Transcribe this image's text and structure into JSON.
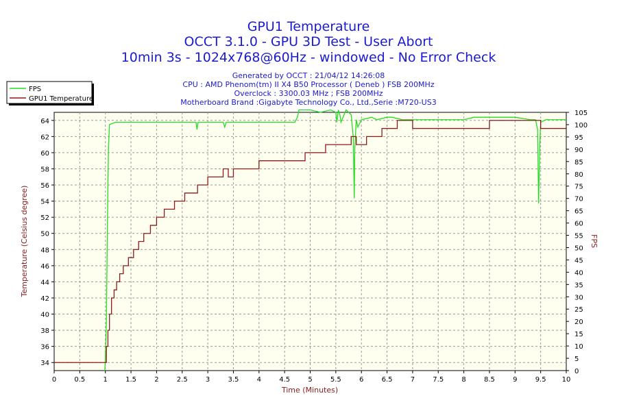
{
  "chart_data": {
    "type": "line",
    "title": "GPU1 Temperature",
    "subtitle_lines": [
      "OCCT 3.1.0 - GPU 3D Test - User Abort",
      "10min 3s - 1024x768@60Hz - windowed - No Error Check"
    ],
    "info_lines": [
      "Generated by OCCT : 21/04/12 14:26:08",
      "CPU : AMD Phenom(tm) II X4 B50 Processor ( Deneb ) FSB 200MHz",
      "Overclock : 3300.03 MHz ; FSB 200MHz",
      "Motherboard Brand :Gigabyte Technology Co., Ltd.,Serie :M720-US3"
    ],
    "xlabel": "Time (Minutes)",
    "ylabel": "Temperature (Celsius degree)",
    "y2label": "FPS",
    "xlim": [
      0,
      10
    ],
    "ylim": [
      33,
      65
    ],
    "y2lim": [
      0,
      105
    ],
    "grid": true,
    "legend_position": "top-left",
    "x_ticks": [
      "0",
      "0.5",
      "1",
      "1.5",
      "2",
      "2.5",
      "3",
      "3.5",
      "4",
      "4.5",
      "5",
      "5.5",
      "6",
      "6.5",
      "7",
      "7.5",
      "8",
      "8.5",
      "9",
      "9.5",
      "10"
    ],
    "y_ticks": [
      "34",
      "36",
      "38",
      "40",
      "42",
      "44",
      "46",
      "48",
      "50",
      "52",
      "54",
      "56",
      "58",
      "60",
      "62",
      "64"
    ],
    "y2_ticks": [
      "0",
      "5",
      "10",
      "15",
      "20",
      "25",
      "30",
      "35",
      "40",
      "45",
      "50",
      "55",
      "60",
      "65",
      "70",
      "75",
      "80",
      "85",
      "90",
      "95",
      "100",
      "105"
    ],
    "series": [
      {
        "name": "FPS",
        "color": "#22dd22",
        "axis": "right",
        "x": [
          0.99,
          1.0,
          1.02,
          1.04,
          1.06,
          1.08,
          1.2,
          1.5,
          2.0,
          2.5,
          2.77,
          2.79,
          2.81,
          3.0,
          3.3,
          3.33,
          3.36,
          3.5,
          4.0,
          4.5,
          4.7,
          4.75,
          4.78,
          5.0,
          5.2,
          5.4,
          5.5,
          5.52,
          5.55,
          5.58,
          5.6,
          5.7,
          5.8,
          5.84,
          5.86,
          5.87,
          5.89,
          5.9,
          5.93,
          6.0,
          6.2,
          6.3,
          6.5,
          6.6,
          6.8,
          7.0,
          7.5,
          8.0,
          8.2,
          8.5,
          9.0,
          9.3,
          9.4,
          9.44,
          9.46,
          9.48,
          9.5,
          9.6,
          9.8,
          10.0
        ],
        "y": [
          0,
          5,
          20,
          60,
          90,
          100,
          101,
          101,
          101,
          101,
          101,
          98,
          101,
          101,
          101,
          99,
          101,
          101,
          101,
          101,
          101,
          103,
          106,
          106,
          105,
          106,
          105,
          101,
          106,
          104,
          101,
          106,
          104,
          95,
          70,
          90,
          98,
          102,
          99,
          102,
          103,
          102,
          103,
          103,
          102,
          102,
          102,
          102,
          103,
          103,
          103,
          102,
          102,
          98,
          68,
          90,
          101,
          102,
          102,
          102
        ]
      },
      {
        "name": "GPU1 Temperature",
        "color": "#8b1a1a",
        "axis": "left",
        "x": [
          0.0,
          1.0,
          1.02,
          1.05,
          1.08,
          1.12,
          1.17,
          1.22,
          1.28,
          1.35,
          1.45,
          1.55,
          1.65,
          1.75,
          1.88,
          2.0,
          2.15,
          2.35,
          2.55,
          2.8,
          3.0,
          3.3,
          3.4,
          3.5,
          4.0,
          4.5,
          4.9,
          5.3,
          5.8,
          5.9,
          6.1,
          6.4,
          6.7,
          7.0,
          7.3,
          8.2,
          8.5,
          9.0,
          9.5,
          10.0
        ],
        "y": [
          34,
          34,
          36,
          38,
          40,
          42,
          43,
          44,
          45,
          46,
          47,
          48,
          49,
          50,
          51,
          52,
          53,
          54,
          55,
          56,
          57,
          58,
          57,
          58,
          59,
          59,
          60,
          61,
          62,
          61,
          62,
          63,
          64,
          63,
          63,
          63,
          64,
          64,
          63,
          63
        ]
      }
    ]
  }
}
